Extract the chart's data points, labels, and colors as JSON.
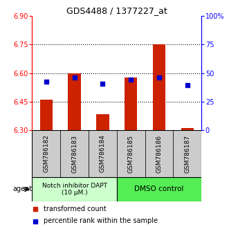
{
  "title": "GDS4488 / 1377227_at",
  "samples": [
    "GSM786182",
    "GSM786183",
    "GSM786184",
    "GSM786185",
    "GSM786186",
    "GSM786187"
  ],
  "red_values": [
    6.46,
    6.6,
    6.385,
    6.575,
    6.75,
    6.31
  ],
  "blue_values": [
    6.555,
    6.575,
    6.545,
    6.565,
    6.575,
    6.535
  ],
  "red_base": 6.3,
  "ylim": [
    6.3,
    6.9
  ],
  "yticks": [
    6.3,
    6.45,
    6.6,
    6.75,
    6.9
  ],
  "right_yticks": [
    0,
    25,
    50,
    75,
    100
  ],
  "right_ytick_labels": [
    "0",
    "25",
    "50",
    "75",
    "100%"
  ],
  "group1_color": "#ccffcc",
  "group2_color": "#55ee55",
  "group1_label": "Notch inhibitor DAPT\n(10 μM.)",
  "group2_label": "DMSO control",
  "group1_indices": [
    0,
    1,
    2
  ],
  "group2_indices": [
    3,
    4,
    5
  ],
  "bar_color": "#cc2200",
  "dot_color": "#0000cc",
  "agent_label": "agent",
  "legend_red": "transformed count",
  "legend_blue": "percentile rank within the sample",
  "bar_width": 0.45,
  "dot_size": 18,
  "sample_box_color": "#cccccc"
}
